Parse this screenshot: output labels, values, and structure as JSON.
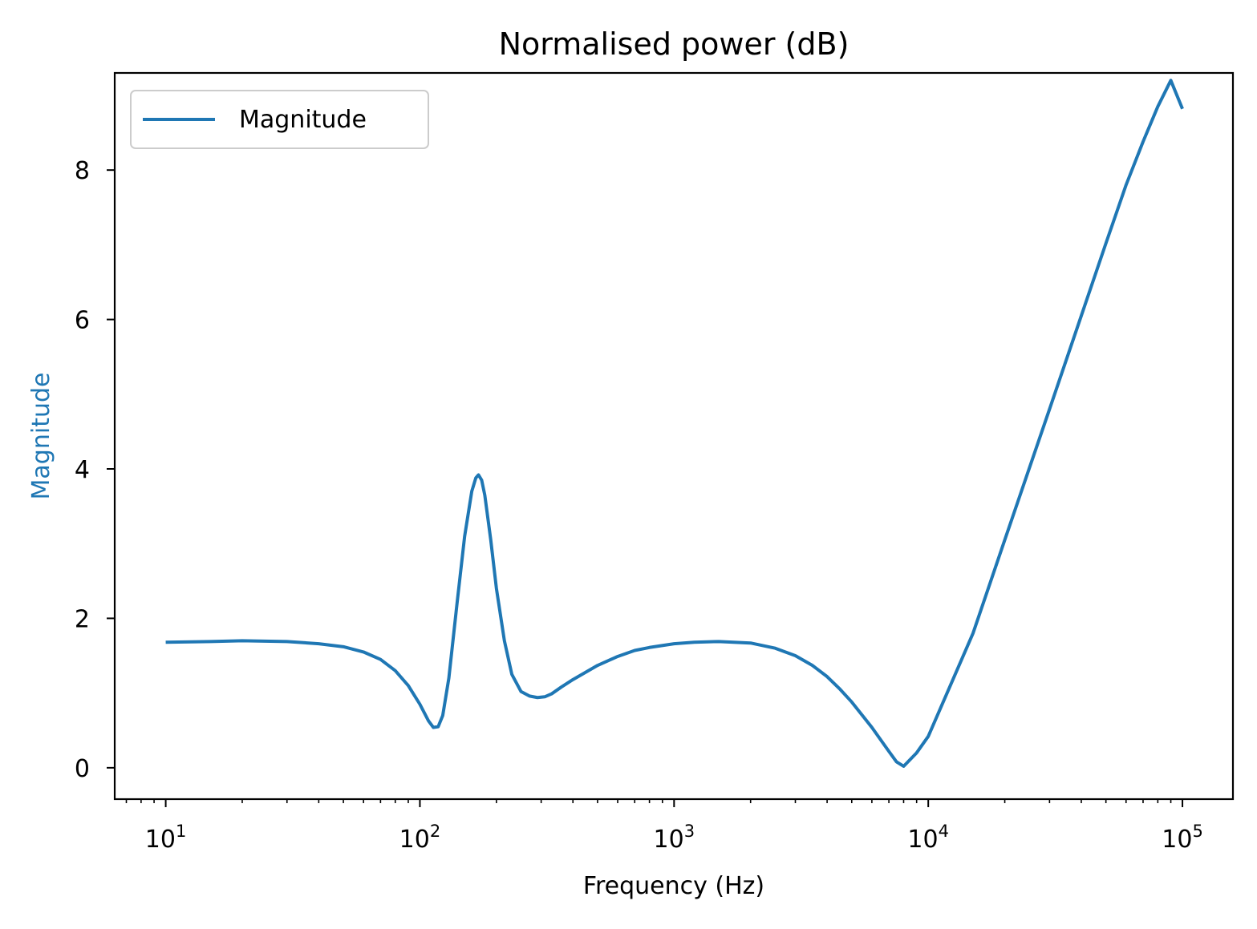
{
  "chart_data": {
    "type": "line",
    "title": "Normalised power (dB)",
    "xlabel": "Frequency (Hz)",
    "ylabel": "Magnitude",
    "ylabel_color": "#1f77b4",
    "xscale": "log",
    "xlim": [
      6.3,
      158000
    ],
    "ylim": [
      -0.42,
      9.3
    ],
    "grid": false,
    "legend": {
      "position": "top-left",
      "entries": [
        "Magnitude"
      ]
    },
    "x_ticks": [
      {
        "value": 10,
        "base": "10",
        "exp": "1"
      },
      {
        "value": 100,
        "base": "10",
        "exp": "2"
      },
      {
        "value": 1000,
        "base": "10",
        "exp": "3"
      },
      {
        "value": 10000,
        "base": "10",
        "exp": "4"
      },
      {
        "value": 100000,
        "base": "10",
        "exp": "5"
      }
    ],
    "y_ticks": [
      {
        "value": 0,
        "label": "0"
      },
      {
        "value": 2,
        "label": "2"
      },
      {
        "value": 4,
        "label": "4"
      },
      {
        "value": 6,
        "label": "6"
      },
      {
        "value": 8,
        "label": "8"
      }
    ],
    "series": [
      {
        "name": "Magnitude",
        "color": "#1f77b4",
        "x": [
          10,
          15,
          20,
          30,
          40,
          50,
          60,
          70,
          80,
          90,
          100,
          108,
          113,
          118,
          123,
          130,
          140,
          150,
          160,
          166,
          170,
          175,
          180,
          190,
          200,
          215,
          230,
          250,
          270,
          290,
          310,
          330,
          360,
          400,
          450,
          500,
          600,
          700,
          800,
          1000,
          1200,
          1500,
          2000,
          2500,
          3000,
          3500,
          4000,
          4500,
          5000,
          6000,
          7000,
          7500,
          8000,
          9000,
          10000,
          15000,
          20000,
          30000,
          40000,
          50000,
          60000,
          70000,
          80000,
          90000,
          100000
        ],
        "y": [
          1.68,
          1.69,
          1.7,
          1.69,
          1.66,
          1.62,
          1.55,
          1.45,
          1.3,
          1.1,
          0.85,
          0.63,
          0.54,
          0.55,
          0.7,
          1.2,
          2.2,
          3.1,
          3.7,
          3.88,
          3.92,
          3.85,
          3.65,
          3.05,
          2.4,
          1.7,
          1.25,
          1.02,
          0.96,
          0.94,
          0.95,
          0.99,
          1.08,
          1.18,
          1.28,
          1.37,
          1.49,
          1.57,
          1.61,
          1.66,
          1.68,
          1.69,
          1.67,
          1.6,
          1.5,
          1.37,
          1.22,
          1.05,
          0.88,
          0.54,
          0.22,
          0.08,
          0.02,
          0.2,
          0.42,
          1.8,
          3.05,
          4.8,
          6.05,
          7.02,
          7.8,
          8.38,
          8.85,
          9.2,
          8.82
        ]
      }
    ]
  }
}
